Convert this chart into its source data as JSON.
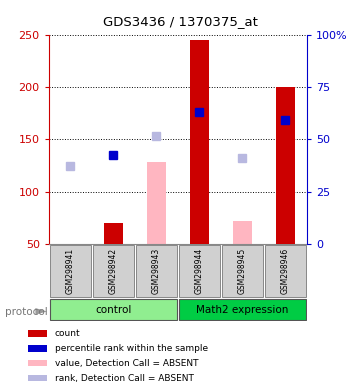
{
  "title": "GDS3436 / 1370375_at",
  "samples": [
    "GSM298941",
    "GSM298942",
    "GSM298943",
    "GSM298944",
    "GSM298945",
    "GSM298946"
  ],
  "red_bars": [
    null,
    70,
    null,
    245,
    null,
    200
  ],
  "pink_bars": [
    null,
    null,
    128,
    null,
    72,
    null
  ],
  "blue_squares_left_scale": [
    null,
    135,
    null,
    176,
    null,
    168
  ],
  "light_blue_squares_left_scale": [
    124,
    null,
    153,
    null,
    132,
    null
  ],
  "ylim_left": [
    50,
    250
  ],
  "ylim_right": [
    0,
    100
  ],
  "left_ticks": [
    50,
    100,
    150,
    200,
    250
  ],
  "right_ticks": [
    0,
    25,
    50,
    75,
    100
  ],
  "right_tick_labels": [
    "0",
    "25",
    "50",
    "75",
    "100%"
  ],
  "left_color": "#cc0000",
  "right_color": "#0000cc",
  "bar_bottom": 50,
  "red_color": "#cc0000",
  "pink_color": "#ffb6c1",
  "blue_color": "#0000cc",
  "light_blue_color": "#b8b8e0",
  "legend_labels": [
    "count",
    "percentile rank within the sample",
    "value, Detection Call = ABSENT",
    "rank, Detection Call = ABSENT"
  ],
  "legend_colors": [
    "#cc0000",
    "#0000cc",
    "#ffb6c1",
    "#b8b8e0"
  ],
  "group_label_control": "control",
  "group_label_math2": "Math2 expression",
  "light_green": "#90EE90",
  "dark_green": "#00CC44",
  "gray_box": "#d0d0d0",
  "protocol_label": "protocol"
}
